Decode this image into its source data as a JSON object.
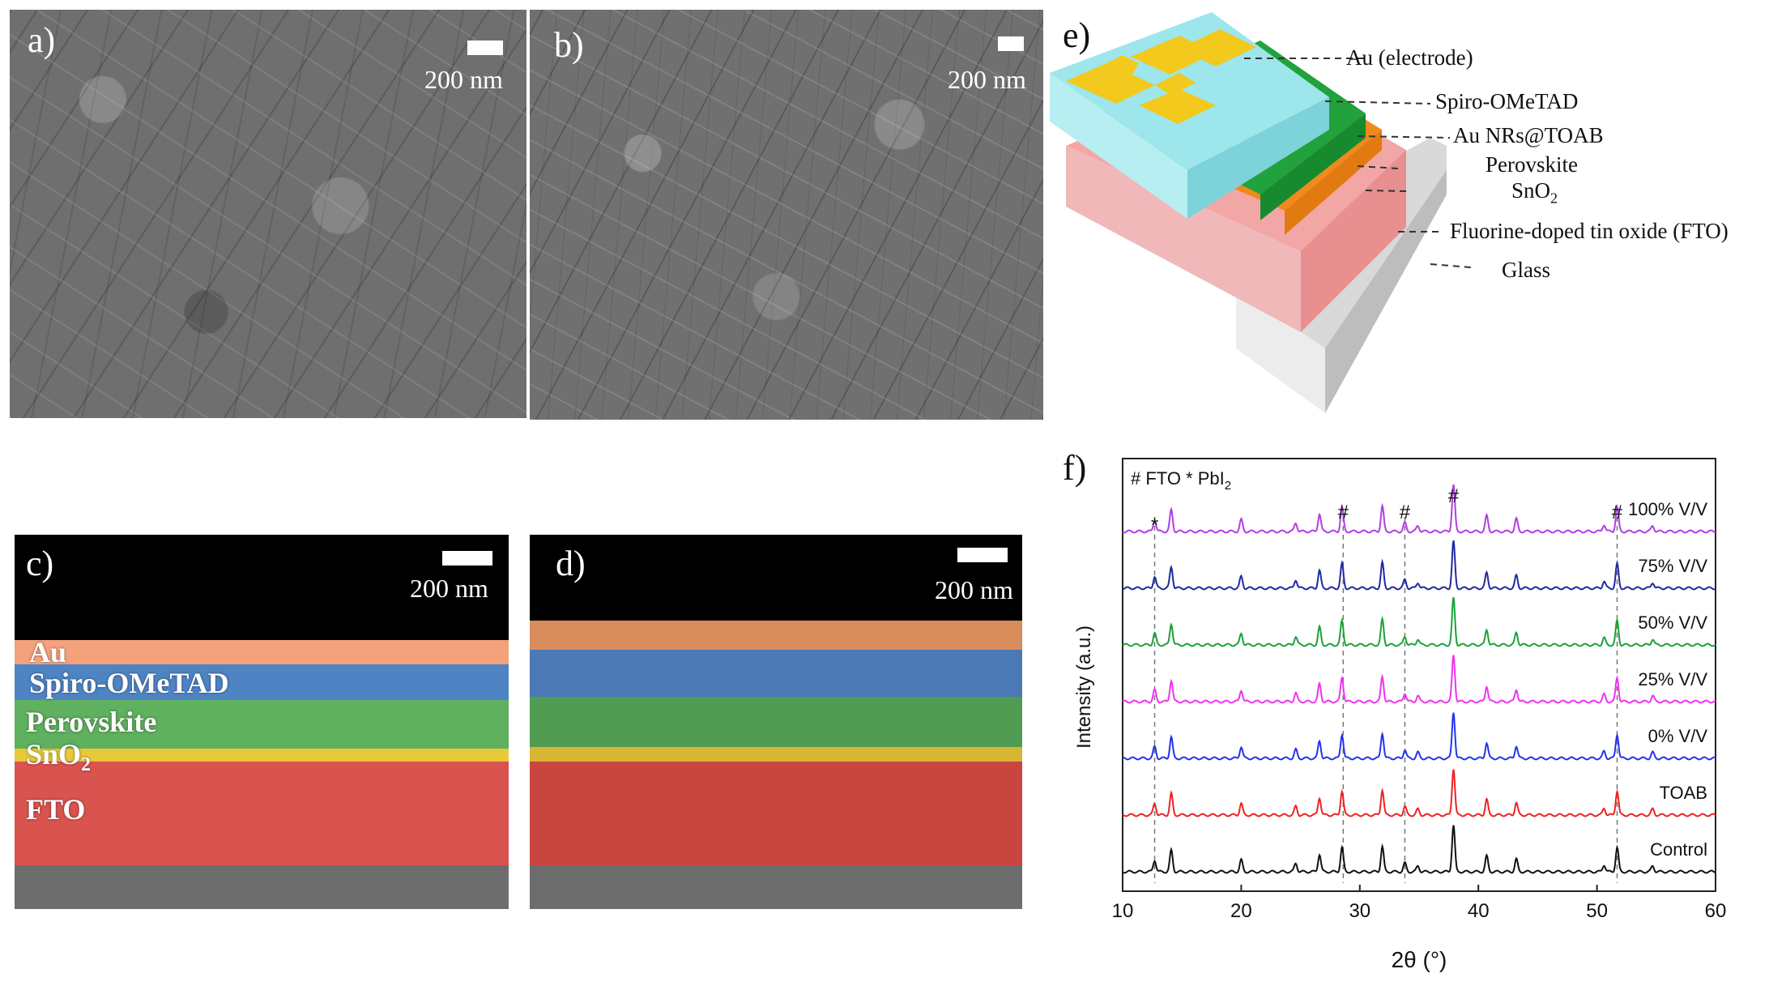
{
  "panels": {
    "a": {
      "letter": "a)",
      "scale": "200 nm"
    },
    "b": {
      "letter": "b)",
      "scale": "200 nm"
    },
    "c": {
      "letter": "c)",
      "scale": "200 nm",
      "layers": [
        "Au",
        "Spiro-OMeTAD",
        "Perovskite",
        "SnO",
        "FTO"
      ],
      "sno2_sub": "2"
    },
    "d": {
      "letter": "d)",
      "scale": "200 nm"
    },
    "e": {
      "letter": "e)",
      "labels": [
        "Au (electrode)",
        "Spiro-OMeTAD",
        "Au NRs@TOAB",
        "Perovskite",
        "SnO",
        "Fluorine-doped tin oxide (FTO)",
        "Glass"
      ],
      "sno2_sub": "2"
    },
    "f": {
      "letter": "f)"
    }
  },
  "colors": {
    "au": "#f4a27c",
    "spiro": "#4f84c4",
    "perovskite": "#5fb05f",
    "sno2": "#e8c93a",
    "fto": "#d9534f",
    "dev_au": "#f2c91c",
    "dev_spiro": "#9de6ec",
    "dev_perov": "#22a23c",
    "dev_sno2": "#f08a1c",
    "dev_fto": "#f3a6a6",
    "dev_glass": "#d9d9d9"
  },
  "chart_data": {
    "type": "line",
    "xlabel": "2θ (°)",
    "ylabel": "Intensity (a.u.)",
    "xlim": [
      10,
      60
    ],
    "xticks": [
      10,
      20,
      30,
      40,
      50,
      60
    ],
    "legend_text": {
      "prefix": "# FTO * PbI",
      "sub": "2"
    },
    "markers": [
      {
        "symbol": "*",
        "x": 12.7
      },
      {
        "symbol": "#",
        "x": 28.6
      },
      {
        "symbol": "#",
        "x": 33.8
      },
      {
        "symbol": "#",
        "x": 37.9
      },
      {
        "symbol": "#",
        "x": 51.7
      }
    ],
    "reference_lines": [
      12.7,
      28.6,
      33.8,
      51.7
    ],
    "peaks": [
      {
        "x": 12.7,
        "h": 0.3
      },
      {
        "x": 14.1,
        "h": 0.55
      },
      {
        "x": 20.0,
        "h": 0.3
      },
      {
        "x": 24.6,
        "h": 0.22
      },
      {
        "x": 26.6,
        "h": 0.45
      },
      {
        "x": 28.5,
        "h": 0.62
      },
      {
        "x": 31.9,
        "h": 0.65
      },
      {
        "x": 33.8,
        "h": 0.22
      },
      {
        "x": 34.9,
        "h": 0.15
      },
      {
        "x": 37.9,
        "h": 1.2
      },
      {
        "x": 40.7,
        "h": 0.4
      },
      {
        "x": 43.2,
        "h": 0.32
      },
      {
        "x": 50.6,
        "h": 0.18
      },
      {
        "x": 51.7,
        "h": 0.62
      },
      {
        "x": 54.7,
        "h": 0.15
      }
    ],
    "series": [
      {
        "name": "100% V/V",
        "color": "#b03ee3"
      },
      {
        "name": "75% V/V",
        "color": "#1f2aa0"
      },
      {
        "name": "50% V/V",
        "color": "#1aa23a"
      },
      {
        "name": "25% V/V",
        "color": "#ee33ee"
      },
      {
        "name": "0% V/V",
        "color": "#2233ee"
      },
      {
        "name": "TOAB",
        "color": "#ee2222"
      },
      {
        "name": "Control",
        "color": "#111111"
      }
    ]
  }
}
